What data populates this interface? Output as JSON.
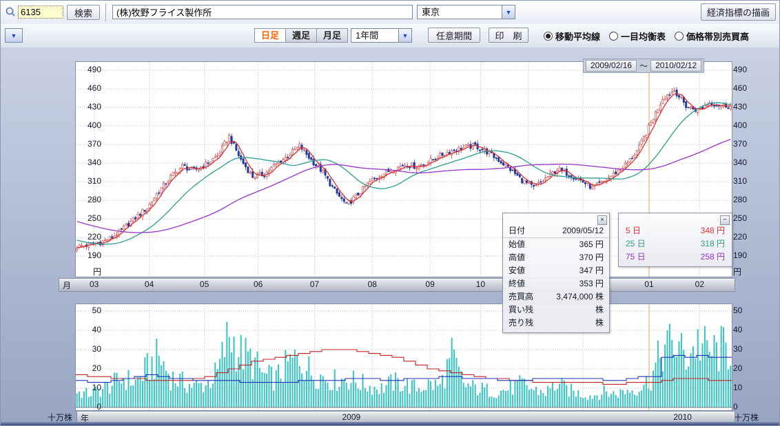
{
  "colors": {
    "accent_orange": "#ff6600",
    "ma5": "#e03030",
    "ma25": "#2a9d8f",
    "ma75": "#9933cc",
    "candle_up": "#ffffff",
    "candle_up_border": "#d03030",
    "candle_down": "#1f3a9e",
    "volume_bar": "#36c3c3",
    "year_line": "#d8a84a"
  },
  "toolbar": {
    "code_value": "6135",
    "search_label": "検索",
    "stock_name": "(株)牧野フライス製作所",
    "exchange": "東京",
    "draw_indicator_label": "経済指標の描画",
    "period_tabs": [
      {
        "label": "日足",
        "selected": true
      },
      {
        "label": "週足",
        "selected": false
      },
      {
        "label": "月足",
        "selected": false
      }
    ],
    "range_value": "1年間",
    "custom_period_label": "任意期間",
    "print_label": "印　刷",
    "overlays": [
      {
        "label": "移動平均線",
        "selected": true
      },
      {
        "label": "一目均衡表",
        "selected": false
      },
      {
        "label": "価格帯別売買高",
        "selected": false
      }
    ]
  },
  "date_range": {
    "start": "2009/02/16",
    "separator": "～",
    "end": "2010/02/12"
  },
  "price_axis": {
    "ticks": [
      490,
      460,
      430,
      400,
      370,
      340,
      310,
      280,
      250,
      220,
      190
    ],
    "unit": "円"
  },
  "volume_axis": {
    "ticks": [
      50,
      40,
      30,
      20,
      10,
      0
    ],
    "unit": "十万株"
  },
  "month_axis": {
    "label": "月",
    "months": [
      {
        "label": "03",
        "x": 0.028
      },
      {
        "label": "04",
        "x": 0.112
      },
      {
        "label": "05",
        "x": 0.196
      },
      {
        "label": "06",
        "x": 0.278
      },
      {
        "label": "07",
        "x": 0.364
      },
      {
        "label": "08",
        "x": 0.452
      },
      {
        "label": "09",
        "x": 0.54
      },
      {
        "label": "10",
        "x": 0.617
      },
      {
        "label": "11",
        "x": 0.69
      },
      {
        "label": "12",
        "x": 0.773
      },
      {
        "label": "01",
        "x": 0.874
      },
      {
        "label": "02",
        "x": 0.951
      }
    ]
  },
  "year_axis": {
    "label": "年",
    "years": [
      {
        "label": "2009",
        "x": 0.42
      },
      {
        "label": "2010",
        "x": 0.925
      }
    ]
  },
  "tooltip": {
    "close_icon": "×",
    "rows": [
      {
        "label": "日付",
        "value": "2009/05/12"
      },
      {
        "label": "始値",
        "value": "365 円"
      },
      {
        "label": "高値",
        "value": "370 円"
      },
      {
        "label": "安値",
        "value": "347 円"
      },
      {
        "label": "終値",
        "value": "353 円"
      },
      {
        "label": "売買高",
        "value": "3,474,000 株"
      },
      {
        "label": "買い残",
        "value": "株"
      },
      {
        "label": "売り残",
        "value": "株"
      }
    ]
  },
  "legend": {
    "minimize_icon": "−",
    "rows": [
      {
        "label": "5 日",
        "value": "348 円",
        "color": "#e03030"
      },
      {
        "label": "25 日",
        "value": "318 円",
        "color": "#2a9d8f"
      },
      {
        "label": "75 日",
        "value": "258 円",
        "color": "#9933cc"
      }
    ]
  },
  "chart_data": [
    {
      "type": "candlestick",
      "title": "(株)牧野フライス製作所 日足",
      "date_start": "2009/02/16",
      "date_end": "2010/02/12",
      "ylabel": "円",
      "ylim": [
        190,
        490
      ],
      "y_ticks": [
        490,
        460,
        430,
        400,
        370,
        340,
        310,
        280,
        250,
        220,
        190
      ],
      "x_month_labels": [
        "03",
        "04",
        "05",
        "06",
        "07",
        "08",
        "09",
        "10",
        "11",
        "12",
        "01",
        "02"
      ],
      "weekly_closes": [
        205,
        208,
        212,
        220,
        235,
        252,
        268,
        295,
        318,
        335,
        328,
        338,
        352,
        383,
        345,
        318,
        322,
        338,
        352,
        368,
        345,
        325,
        295,
        272,
        290,
        310,
        322,
        330,
        338,
        334,
        342,
        352,
        360,
        365,
        368,
        358,
        345,
        330,
        312,
        300,
        315,
        330,
        322,
        312,
        300,
        310,
        325,
        340,
        365,
        405,
        445,
        458,
        432,
        425,
        438,
        433
      ],
      "prehistory_from": 292,
      "year_line_x": 0.874,
      "moving_averages": [
        {
          "period": 5,
          "latest_label": "348 円",
          "color": "#e03030"
        },
        {
          "period": 25,
          "latest_label": "318 円",
          "color": "#2a9d8f"
        },
        {
          "period": 75,
          "latest_label": "258 円",
          "color": "#9933cc"
        }
      ],
      "selected_day": {
        "date": "2009/05/12",
        "open": 365,
        "high": 370,
        "low": 347,
        "close": 353,
        "volume_shares": 3474000
      }
    },
    {
      "type": "bar",
      "title": "売買高",
      "ylabel": "十万株",
      "ylim": [
        0,
        50
      ],
      "y_ticks": [
        50,
        40,
        30,
        20,
        10,
        0
      ],
      "weekly_volume": [
        8,
        7,
        9,
        12,
        15,
        13,
        20,
        26,
        16,
        13,
        11,
        12,
        18,
        38,
        28,
        24,
        16,
        15,
        22,
        26,
        18,
        16,
        14,
        15,
        13,
        11,
        10,
        13,
        12,
        10,
        12,
        11,
        26,
        12,
        10,
        9,
        8,
        10,
        12,
        9,
        8,
        12,
        9,
        7,
        6,
        8,
        7,
        9,
        10,
        15,
        30,
        33,
        26,
        34,
        28,
        30
      ],
      "series": [
        {
          "name": "買い残",
          "color": "#c42020",
          "values": [
            17,
            16,
            16,
            15,
            15,
            15,
            14,
            14,
            14,
            14,
            15,
            16,
            18,
            20,
            22,
            24,
            25,
            26,
            27,
            28,
            29,
            30,
            30,
            30,
            29,
            28,
            27,
            26,
            24,
            22,
            20,
            19,
            18,
            17,
            16,
            15,
            15,
            14,
            14,
            13,
            13,
            13,
            13,
            13,
            13,
            12,
            12,
            13,
            13,
            13,
            14,
            15,
            15,
            15,
            14,
            14
          ]
        },
        {
          "name": "売り残",
          "color": "#2030b8",
          "values": [
            14,
            13,
            13,
            14,
            15,
            16,
            17,
            16,
            15,
            15,
            14,
            14,
            14,
            14,
            13,
            13,
            13,
            13,
            13,
            14,
            14,
            14,
            14,
            15,
            15,
            15,
            14,
            14,
            15,
            15,
            15,
            16,
            16,
            15,
            15,
            15,
            14,
            14,
            14,
            15,
            15,
            15,
            15,
            15,
            15,
            14,
            14,
            15,
            16,
            16,
            26,
            27,
            26,
            27,
            26,
            26
          ]
        }
      ],
      "x_year_labels": [
        "2009",
        "2010"
      ]
    }
  ]
}
